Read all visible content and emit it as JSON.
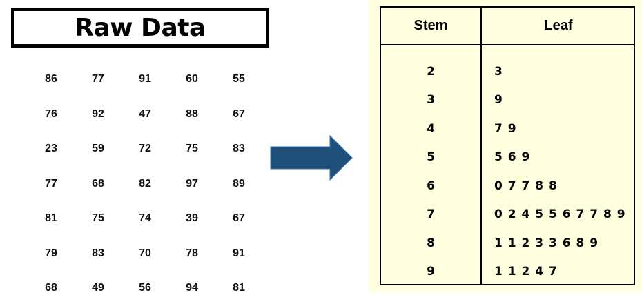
{
  "title": "Raw Data",
  "raw_data": [
    [
      "86",
      "77",
      "91",
      "60",
      "55"
    ],
    [
      "76",
      "92",
      "47",
      "88",
      "67"
    ],
    [
      "23",
      "59",
      "72",
      "75",
      "83"
    ],
    [
      "77",
      "68",
      "82",
      "97",
      "89"
    ],
    [
      "81",
      "75",
      "74",
      "39",
      "67"
    ],
    [
      "79",
      "83",
      "70",
      "78",
      "91"
    ],
    [
      "68",
      "49",
      "56",
      "94",
      "81"
    ]
  ],
  "arrow_icon": "right-arrow-icon",
  "colors": {
    "arrow_fill": "#1f4e79",
    "table_background": "#ffffe0"
  },
  "stem_leaf": {
    "headers": {
      "stem": "Stem",
      "leaf": "Leaf"
    },
    "rows": [
      {
        "stem": "2",
        "leaf": "3"
      },
      {
        "stem": "3",
        "leaf": "9"
      },
      {
        "stem": "4",
        "leaf": "7 9"
      },
      {
        "stem": "5",
        "leaf": "5 6 9"
      },
      {
        "stem": "6",
        "leaf": "0 7 7 8 8"
      },
      {
        "stem": "7",
        "leaf": "0 2 4 5 5 6 7 7 8 9"
      },
      {
        "stem": "8",
        "leaf": "1 1 2 3 3 6 8 9"
      },
      {
        "stem": "9",
        "leaf": "1 1 2 4 7"
      }
    ]
  }
}
